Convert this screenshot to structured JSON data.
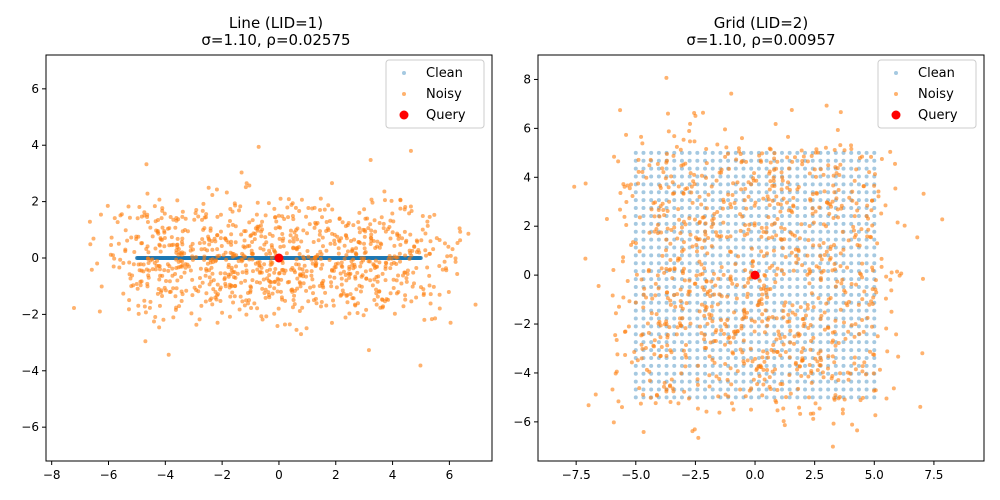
{
  "chart_data": [
    {
      "type": "scatter",
      "title": "Line (LID=1)",
      "subtitle": "σ=1.10, ρ=0.02575",
      "xlabel": "",
      "ylabel": "",
      "xlim": [
        -8.2,
        7.5
      ],
      "ylim": [
        -7.2,
        7.2
      ],
      "x_ticks": [
        -8,
        -6,
        -4,
        -2,
        0,
        2,
        4,
        6
      ],
      "y_ticks": [
        -6,
        -4,
        -2,
        0,
        2,
        4,
        6
      ],
      "grid": false,
      "legend": {
        "position": "top-right",
        "entries": [
          "Clean",
          "Noisy",
          "Query"
        ]
      },
      "series": [
        {
          "name": "Clean",
          "color": "#1f77b4",
          "opacity": 0.4,
          "structure": "line",
          "count": 1000,
          "x_range": [
            -5,
            5
          ],
          "y": 0
        },
        {
          "name": "Noisy",
          "color": "#ff7f0e",
          "opacity": 0.6,
          "structure": "line_plus_gaussian",
          "count": 1000,
          "sigma": 1.1,
          "seed": 11
        },
        {
          "name": "Query",
          "color": "#ff0000",
          "points": [
            [
              0,
              0
            ]
          ]
        }
      ]
    },
    {
      "type": "scatter",
      "title": "Grid (LID=2)",
      "subtitle": "σ=1.10, ρ=0.00957",
      "xlabel": "",
      "ylabel": "",
      "xlim": [
        -9.1,
        9.6
      ],
      "ylim": [
        -7.6,
        9.0
      ],
      "x_ticks": [
        -7.5,
        -5.0,
        -2.5,
        0.0,
        2.5,
        5.0,
        7.5
      ],
      "y_ticks": [
        -6,
        -4,
        -2,
        0,
        2,
        4,
        6,
        8
      ],
      "grid": false,
      "legend": {
        "position": "top-right",
        "entries": [
          "Clean",
          "Noisy",
          "Query"
        ]
      },
      "series": [
        {
          "name": "Clean",
          "color": "#1f77b4",
          "opacity": 0.4,
          "structure": "grid",
          "grid_x": [
            -5,
            5
          ],
          "grid_y": [
            -5,
            5
          ],
          "grid_n": 32
        },
        {
          "name": "Noisy",
          "color": "#ff7f0e",
          "opacity": 0.6,
          "structure": "grid_plus_gaussian",
          "count": 1000,
          "sigma": 1.1,
          "seed": 23
        },
        {
          "name": "Query",
          "color": "#ff0000",
          "points": [
            [
              0,
              0
            ]
          ]
        }
      ]
    }
  ]
}
